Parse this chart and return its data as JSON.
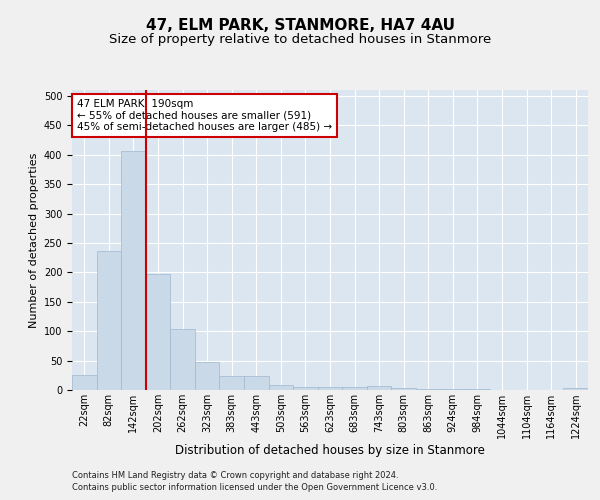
{
  "title": "47, ELM PARK, STANMORE, HA7 4AU",
  "subtitle": "Size of property relative to detached houses in Stanmore",
  "xlabel": "Distribution of detached houses by size in Stanmore",
  "ylabel": "Number of detached properties",
  "categories": [
    "22sqm",
    "82sqm",
    "142sqm",
    "202sqm",
    "262sqm",
    "323sqm",
    "383sqm",
    "443sqm",
    "503sqm",
    "563sqm",
    "623sqm",
    "683sqm",
    "743sqm",
    "803sqm",
    "863sqm",
    "924sqm",
    "984sqm",
    "1044sqm",
    "1104sqm",
    "1164sqm",
    "1224sqm"
  ],
  "values": [
    25,
    237,
    407,
    197,
    104,
    48,
    23,
    23,
    8,
    5,
    5,
    5,
    6,
    3,
    1,
    1,
    1,
    0,
    0,
    0,
    3
  ],
  "bar_color": "#c9d9e8",
  "bar_edge_color": "#a0b8d0",
  "vline_x_index": 3,
  "vline_color": "#cc0000",
  "annotation_text": "47 ELM PARK: 190sqm\n← 55% of detached houses are smaller (591)\n45% of semi-detached houses are larger (485) →",
  "annotation_box_color": "#ffffff",
  "annotation_box_edgecolor": "#cc0000",
  "background_color": "#dce6f0",
  "grid_color": "#ffffff",
  "fig_background": "#f0f0f0",
  "ylim": [
    0,
    510
  ],
  "yticks": [
    0,
    50,
    100,
    150,
    200,
    250,
    300,
    350,
    400,
    450,
    500
  ],
  "footer1": "Contains HM Land Registry data © Crown copyright and database right 2024.",
  "footer2": "Contains public sector information licensed under the Open Government Licence v3.0.",
  "title_fontsize": 11,
  "subtitle_fontsize": 9.5,
  "tick_fontsize": 7,
  "ylabel_fontsize": 8,
  "xlabel_fontsize": 8.5,
  "annotation_fontsize": 7.5,
  "footer_fontsize": 6
}
